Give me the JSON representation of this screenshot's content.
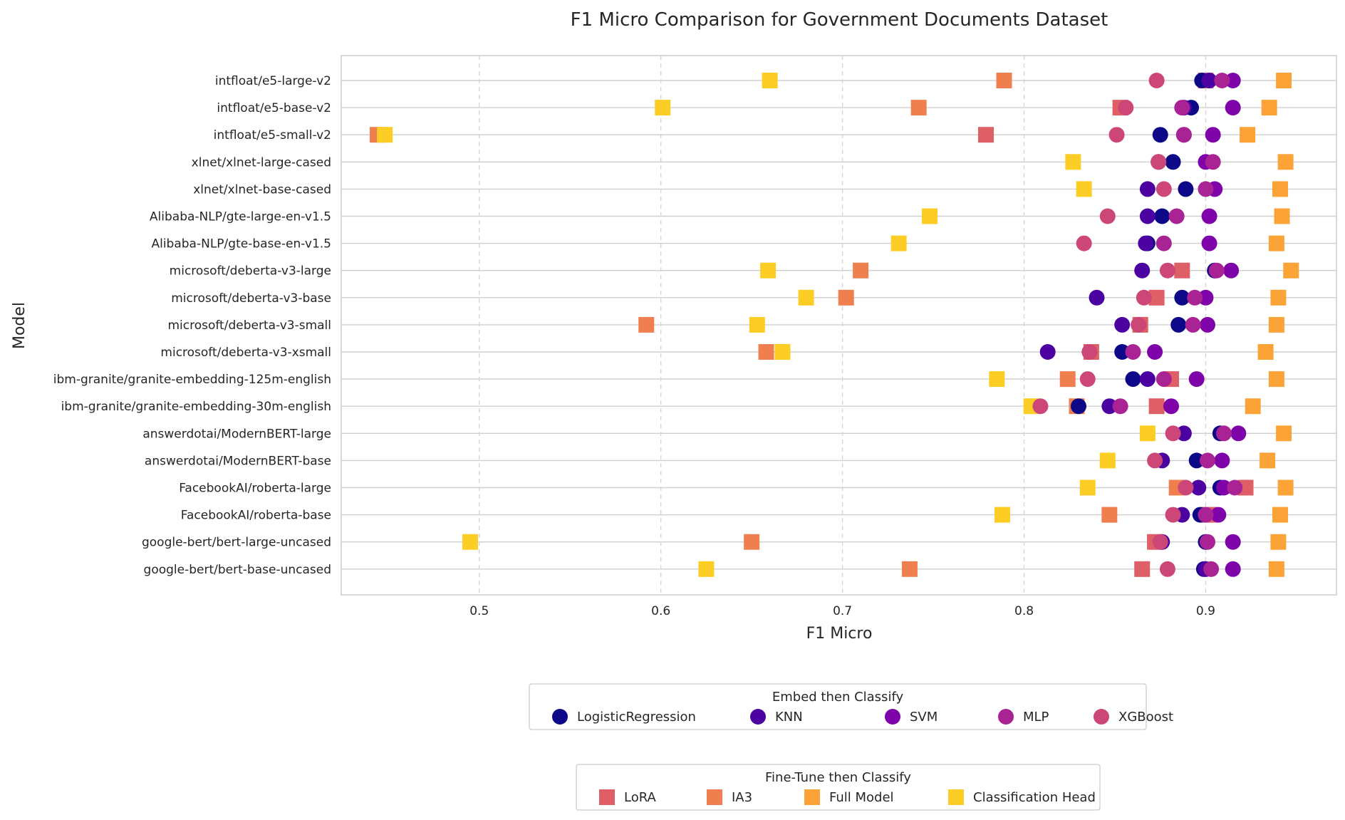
{
  "chart_data": {
    "type": "scatter",
    "title": "F1 Micro Comparison for Government Documents Dataset",
    "xlabel": "F1 Micro",
    "ylabel": "Model",
    "xlim": [
      0.424,
      0.972
    ],
    "xticks": [
      0.5,
      0.6,
      0.7,
      0.8,
      0.9
    ],
    "xtick_labels": [
      "0.5",
      "0.6",
      "0.7",
      "0.8",
      "0.9"
    ],
    "grid": {
      "x": true,
      "x_style": "dashed",
      "y": true,
      "y_style": "solid"
    },
    "categories": [
      "intfloat/e5-large-v2",
      "intfloat/e5-base-v2",
      "intfloat/e5-small-v2",
      "xlnet/xlnet-large-cased",
      "xlnet/xlnet-base-cased",
      "Alibaba-NLP/gte-large-en-v1.5",
      "Alibaba-NLP/gte-base-en-v1.5",
      "microsoft/deberta-v3-large",
      "microsoft/deberta-v3-base",
      "microsoft/deberta-v3-small",
      "microsoft/deberta-v3-xsmall",
      "ibm-granite/granite-embedding-125m-english",
      "ibm-granite/granite-embedding-30m-english",
      "answerdotai/ModernBERT-large",
      "answerdotai/ModernBERT-base",
      "FacebookAI/roberta-large",
      "FacebookAI/roberta-base",
      "google-bert/bert-large-uncased",
      "google-bert/bert-base-uncased"
    ],
    "legend_groups": [
      {
        "title": "Embed then Classify",
        "marker": "circle",
        "position": "bottom-center"
      },
      {
        "title": "Fine-Tune then Classify",
        "marker": "square",
        "position": "bottom-center"
      }
    ],
    "series": [
      {
        "name": "LogisticRegression",
        "group": 0,
        "marker": "circle",
        "color": "#0d0887",
        "values": [
          0.898,
          0.892,
          0.875,
          0.882,
          0.889,
          0.876,
          0.868,
          0.905,
          0.887,
          0.885,
          0.854,
          0.86,
          0.83,
          0.908,
          0.895,
          0.908,
          0.897,
          0.9,
          0.899
        ]
      },
      {
        "name": "KNN",
        "group": 0,
        "marker": "circle",
        "color": "#4c02a1",
        "values": [
          0.902,
          0.888,
          0.888,
          0.874,
          0.868,
          0.868,
          0.867,
          0.865,
          0.84,
          0.854,
          0.813,
          0.868,
          0.847,
          0.888,
          0.876,
          0.896,
          0.887,
          0.876,
          0.9
        ]
      },
      {
        "name": "SVM",
        "group": 0,
        "marker": "circle",
        "color": "#7e03a8",
        "values": [
          0.915,
          0.915,
          0.904,
          0.9,
          0.905,
          0.902,
          0.902,
          0.914,
          0.9,
          0.901,
          0.872,
          0.895,
          0.881,
          0.918,
          0.909,
          0.91,
          0.907,
          0.915,
          0.915
        ]
      },
      {
        "name": "MLP",
        "group": 0,
        "marker": "circle",
        "color": "#a92395",
        "values": [
          0.909,
          0.887,
          0.888,
          0.904,
          0.9,
          0.884,
          0.877,
          0.906,
          0.894,
          0.893,
          0.86,
          0.877,
          0.853,
          0.91,
          0.901,
          0.916,
          0.9,
          0.901,
          0.903
        ]
      },
      {
        "name": "XGBoost",
        "group": 0,
        "marker": "circle",
        "color": "#cc4778",
        "values": [
          0.873,
          0.856,
          0.851,
          0.874,
          0.877,
          0.846,
          0.833,
          0.879,
          0.866,
          0.863,
          0.836,
          0.835,
          0.809,
          0.882,
          0.872,
          0.889,
          0.882,
          0.875,
          0.879
        ]
      },
      {
        "name": "LoRA",
        "group": 1,
        "marker": "square",
        "color": "#de5f65",
        "values": [
          0.9,
          0.853,
          0.779,
          null,
          null,
          null,
          null,
          0.887,
          0.873,
          0.864,
          0.837,
          0.881,
          0.873,
          null,
          null,
          0.922,
          0.902,
          0.872,
          0.865
        ]
      },
      {
        "name": "IA3",
        "group": 1,
        "marker": "square",
        "color": "#f07f4f",
        "values": [
          0.789,
          0.742,
          0.444,
          null,
          null,
          null,
          null,
          0.71,
          0.702,
          0.592,
          0.658,
          0.824,
          0.829,
          null,
          null,
          0.884,
          0.847,
          0.65,
          0.737
        ]
      },
      {
        "name": "Full Model",
        "group": 1,
        "marker": "square",
        "color": "#fca338",
        "values": [
          0.943,
          0.935,
          0.923,
          0.944,
          0.941,
          0.942,
          0.939,
          0.947,
          0.94,
          0.939,
          0.933,
          0.939,
          0.926,
          0.943,
          0.934,
          0.944,
          0.941,
          0.94,
          0.939
        ]
      },
      {
        "name": "Classification Head",
        "group": 1,
        "marker": "square",
        "color": "#fccd25",
        "values": [
          0.66,
          0.601,
          0.448,
          0.827,
          0.833,
          0.748,
          0.731,
          0.659,
          0.68,
          0.653,
          0.667,
          0.785,
          0.804,
          0.868,
          0.846,
          0.835,
          0.788,
          0.495,
          0.625
        ]
      }
    ]
  }
}
